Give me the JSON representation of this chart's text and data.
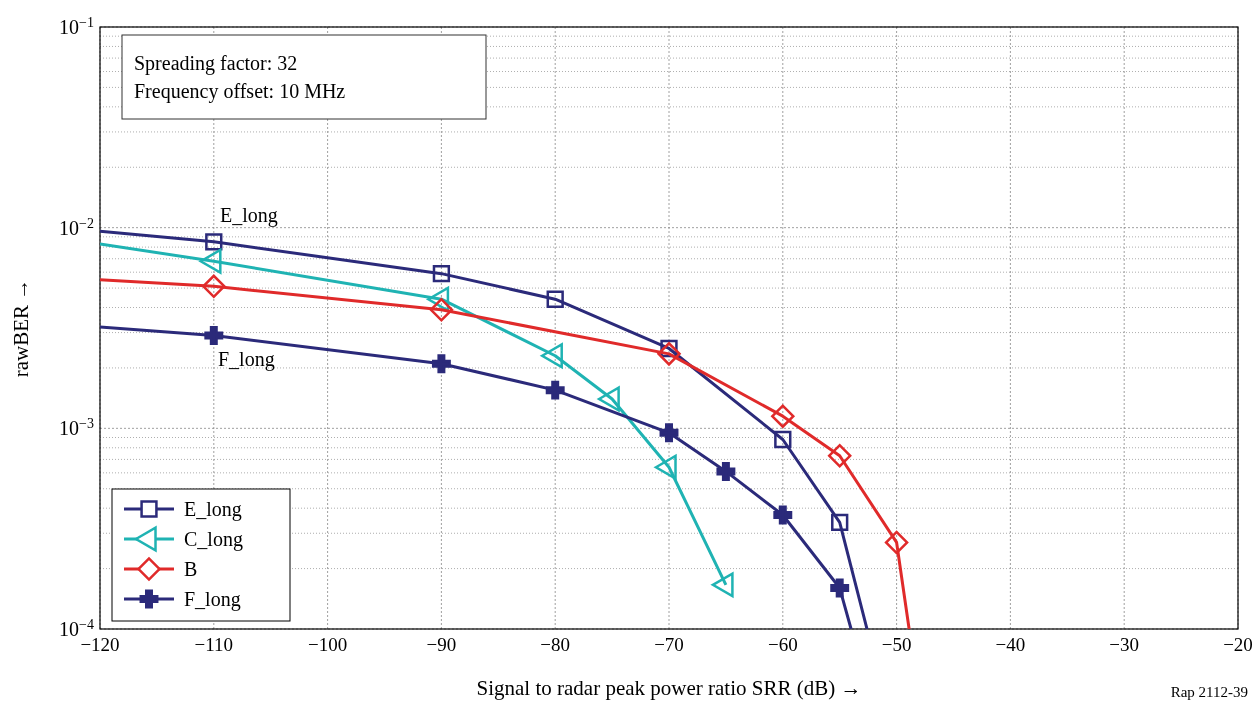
{
  "chart_data": {
    "type": "line",
    "xlabel": "Signal to radar peak power ratio SRR (dB) →",
    "ylabel": "rawBER →",
    "log": "y",
    "grid": true,
    "legend": "bottom left",
    "line_style": "solid",
    "xlim": [
      -120,
      -20
    ],
    "ylim": [
      0.0001,
      0.1
    ],
    "xticks": [
      {
        "value": -120,
        "label": "−120"
      },
      {
        "value": -110,
        "label": "−110"
      },
      {
        "value": -100,
        "label": "−100"
      },
      {
        "value": -90,
        "label": "−90"
      },
      {
        "value": -80,
        "label": "−80"
      },
      {
        "value": -70,
        "label": "−70"
      },
      {
        "value": -60,
        "label": "−60"
      },
      {
        "value": -50,
        "label": "−50"
      },
      {
        "value": -40,
        "label": "−40"
      },
      {
        "value": -30,
        "label": "−30"
      },
      {
        "value": -20,
        "label": "−20"
      }
    ],
    "yticks": [
      {
        "value": 0.0001,
        "label": "10$^{−4}$"
      },
      {
        "value": 0.001,
        "label": "10$^{−3}$"
      },
      {
        "value": 0.01,
        "label": "10$^{−2}$"
      },
      {
        "value": 0.1,
        "label": "10$^{−1}$"
      }
    ],
    "series": [
      {
        "name": "E_long",
        "color": "#2b2a7a",
        "marker": "square",
        "x": [
          -120,
          -110,
          -90,
          -80,
          -70,
          -60,
          -55,
          -52.6
        ],
        "values": [
          0.0096,
          0.0085,
          0.0059,
          0.0044,
          0.0025,
          0.00088,
          0.00034,
          0.0001
        ]
      },
      {
        "name": "C_long",
        "color": "#1fb3b3",
        "marker": "triangle",
        "x": [
          -120,
          -110,
          -90,
          -80,
          -75,
          -70,
          -65
        ],
        "values": [
          0.0083,
          0.0068,
          0.0044,
          0.0023,
          0.0014,
          0.00064,
          0.000166
        ]
      },
      {
        "name": "B",
        "color": "#e02a2a",
        "marker": "diamond",
        "x": [
          -120,
          -110,
          -90,
          -70,
          -60,
          -55,
          -50,
          -48.9
        ],
        "values": [
          0.0055,
          0.0051,
          0.0039,
          0.00235,
          0.00115,
          0.00073,
          0.00027,
          0.0001
        ]
      },
      {
        "name": "F_long",
        "color": "#2b2a7a",
        "marker": "cross",
        "x": [
          -120,
          -110,
          -90,
          -80,
          -70,
          -65,
          -60,
          -55,
          -54
        ],
        "values": [
          0.0032,
          0.0029,
          0.0021,
          0.00155,
          0.00095,
          0.00061,
          0.00037,
          0.00016,
          0.0001
        ]
      }
    ],
    "annotations": [
      "E_long",
      "F_long",
      "Spreading factor: 32",
      "Frequency offset: 10 MHz",
      "Rap 2112-39"
    ]
  }
}
